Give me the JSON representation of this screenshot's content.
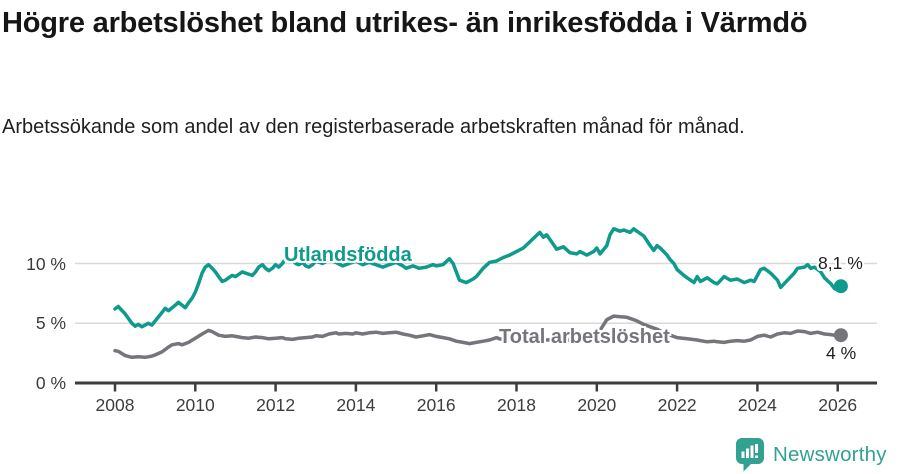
{
  "header": {
    "title": "Högre arbetslöshet bland utrikes- än inrikesfödda i Värmdö",
    "subtitle": "Arbetssökande som andel av den registerbaserade arbetskraften månad för månad."
  },
  "footer": {
    "brand": "Newsworthy"
  },
  "colors": {
    "foreign": "#0e9a8c",
    "total": "#75757c",
    "grid": "#d9d9d9",
    "axis": "#3d3d3d",
    "brand": "#33a191",
    "annotation_text": "#1f1f1f"
  },
  "chart_data": {
    "type": "line",
    "title": "Högre arbetslöshet bland utrikes- än inrikesfödda i Värmdö",
    "subtitle": "Arbetssökande som andel av den registerbaserade arbetskraften månad för månad.",
    "xlabel": "",
    "ylabel": "",
    "xlim": [
      2007.5,
      2026.6
    ],
    "ylim": [
      0,
      14
    ],
    "grid": "horizontal",
    "legend_position": "inline-labels",
    "x_ticks": [
      2008,
      2010,
      2012,
      2014,
      2016,
      2018,
      2020,
      2022,
      2024,
      2026
    ],
    "y_ticks": [
      {
        "value": 10,
        "label": "10 %"
      },
      {
        "value": 5,
        "label": "5 %"
      },
      {
        "value": 0,
        "label": "0 %"
      }
    ],
    "series": [
      {
        "id": "utlandsfodda",
        "name": "Utlandsfödda",
        "last_label": "8,1 %",
        "last_value": 8.1,
        "color": "#0e9a8c",
        "points": [
          [
            2008.0,
            6.2
          ],
          [
            2008.08,
            6.4
          ],
          [
            2008.25,
            5.8
          ],
          [
            2008.42,
            5.0
          ],
          [
            2008.5,
            4.75
          ],
          [
            2008.58,
            4.9
          ],
          [
            2008.67,
            4.7
          ],
          [
            2008.83,
            5.0
          ],
          [
            2008.92,
            4.85
          ],
          [
            2009.0,
            5.2
          ],
          [
            2009.17,
            5.9
          ],
          [
            2009.25,
            6.25
          ],
          [
            2009.33,
            6.05
          ],
          [
            2009.5,
            6.5
          ],
          [
            2009.58,
            6.75
          ],
          [
            2009.75,
            6.3
          ],
          [
            2009.83,
            6.7
          ],
          [
            2009.92,
            7.1
          ],
          [
            2010.0,
            7.6
          ],
          [
            2010.08,
            8.3
          ],
          [
            2010.17,
            9.2
          ],
          [
            2010.25,
            9.7
          ],
          [
            2010.33,
            9.9
          ],
          [
            2010.42,
            9.6
          ],
          [
            2010.5,
            9.3
          ],
          [
            2010.58,
            8.9
          ],
          [
            2010.67,
            8.5
          ],
          [
            2010.75,
            8.6
          ],
          [
            2010.83,
            8.8
          ],
          [
            2010.92,
            9.0
          ],
          [
            2011.0,
            8.9
          ],
          [
            2011.17,
            9.3
          ],
          [
            2011.25,
            9.2
          ],
          [
            2011.42,
            9.0
          ],
          [
            2011.5,
            9.3
          ],
          [
            2011.58,
            9.7
          ],
          [
            2011.67,
            9.9
          ],
          [
            2011.75,
            9.6
          ],
          [
            2011.83,
            9.4
          ],
          [
            2011.92,
            9.6
          ],
          [
            2012.0,
            9.9
          ],
          [
            2012.08,
            9.7
          ],
          [
            2012.17,
            10.0
          ],
          [
            2012.25,
            10.4
          ],
          [
            2012.33,
            10.6
          ],
          [
            2012.42,
            10.3
          ],
          [
            2012.5,
            10.0
          ],
          [
            2012.58,
            9.9
          ],
          [
            2012.67,
            10.1
          ],
          [
            2012.75,
            9.8
          ],
          [
            2012.83,
            9.7
          ],
          [
            2012.92,
            9.9
          ],
          [
            2013.0,
            10.2
          ],
          [
            2013.17,
            10.0
          ],
          [
            2013.33,
            10.3
          ],
          [
            2013.5,
            10.1
          ],
          [
            2013.67,
            9.8
          ],
          [
            2013.83,
            10.0
          ],
          [
            2014.0,
            10.2
          ],
          [
            2014.17,
            9.9
          ],
          [
            2014.33,
            10.1
          ],
          [
            2014.5,
            9.9
          ],
          [
            2014.67,
            9.7
          ],
          [
            2014.83,
            9.9
          ],
          [
            2015.0,
            10.1
          ],
          [
            2015.17,
            9.8
          ],
          [
            2015.25,
            9.6
          ],
          [
            2015.42,
            9.8
          ],
          [
            2015.58,
            9.6
          ],
          [
            2015.75,
            9.7
          ],
          [
            2015.92,
            9.9
          ],
          [
            2016.0,
            9.8
          ],
          [
            2016.17,
            9.9
          ],
          [
            2016.33,
            10.4
          ],
          [
            2016.42,
            10.0
          ],
          [
            2016.58,
            8.6
          ],
          [
            2016.75,
            8.4
          ],
          [
            2016.92,
            8.7
          ],
          [
            2017.0,
            8.9
          ],
          [
            2017.17,
            9.6
          ],
          [
            2017.33,
            10.1
          ],
          [
            2017.5,
            10.2
          ],
          [
            2017.67,
            10.5
          ],
          [
            2017.83,
            10.7
          ],
          [
            2018.0,
            11.0
          ],
          [
            2018.17,
            11.3
          ],
          [
            2018.33,
            11.8
          ],
          [
            2018.42,
            12.1
          ],
          [
            2018.58,
            12.6
          ],
          [
            2018.67,
            12.2
          ],
          [
            2018.75,
            12.4
          ],
          [
            2018.92,
            11.6
          ],
          [
            2019.0,
            11.2
          ],
          [
            2019.17,
            11.4
          ],
          [
            2019.33,
            10.9
          ],
          [
            2019.5,
            10.8
          ],
          [
            2019.58,
            11.0
          ],
          [
            2019.75,
            10.7
          ],
          [
            2019.92,
            11.0
          ],
          [
            2020.0,
            11.3
          ],
          [
            2020.08,
            10.8
          ],
          [
            2020.25,
            11.5
          ],
          [
            2020.33,
            12.4
          ],
          [
            2020.42,
            12.9
          ],
          [
            2020.58,
            12.7
          ],
          [
            2020.67,
            12.8
          ],
          [
            2020.83,
            12.6
          ],
          [
            2020.92,
            12.9
          ],
          [
            2021.0,
            12.7
          ],
          [
            2021.17,
            12.3
          ],
          [
            2021.33,
            11.5
          ],
          [
            2021.42,
            11.1
          ],
          [
            2021.5,
            11.5
          ],
          [
            2021.58,
            11.3
          ],
          [
            2021.75,
            10.7
          ],
          [
            2021.83,
            10.3
          ],
          [
            2021.92,
            10.0
          ],
          [
            2022.0,
            9.5
          ],
          [
            2022.17,
            9.0
          ],
          [
            2022.25,
            8.8
          ],
          [
            2022.42,
            8.4
          ],
          [
            2022.5,
            8.9
          ],
          [
            2022.58,
            8.5
          ],
          [
            2022.75,
            8.8
          ],
          [
            2022.92,
            8.4
          ],
          [
            2023.0,
            8.3
          ],
          [
            2023.17,
            8.9
          ],
          [
            2023.33,
            8.6
          ],
          [
            2023.5,
            8.7
          ],
          [
            2023.67,
            8.4
          ],
          [
            2023.83,
            8.6
          ],
          [
            2023.92,
            8.5
          ],
          [
            2024.0,
            9.0
          ],
          [
            2024.08,
            9.5
          ],
          [
            2024.17,
            9.6
          ],
          [
            2024.33,
            9.2
          ],
          [
            2024.5,
            8.6
          ],
          [
            2024.58,
            8.0
          ],
          [
            2024.75,
            8.6
          ],
          [
            2024.92,
            9.2
          ],
          [
            2025.0,
            9.6
          ],
          [
            2025.17,
            9.7
          ],
          [
            2025.25,
            9.9
          ],
          [
            2025.33,
            9.6
          ],
          [
            2025.42,
            9.7
          ],
          [
            2025.58,
            9.3
          ],
          [
            2025.67,
            8.8
          ],
          [
            2025.83,
            8.3
          ],
          [
            2025.92,
            7.9
          ],
          [
            2026.0,
            7.8
          ],
          [
            2026.08,
            8.1
          ]
        ]
      },
      {
        "id": "total",
        "name": "Total arbetslöshet",
        "last_label": "4 %",
        "last_value": 4.0,
        "color": "#75757c",
        "points": [
          [
            2008.0,
            2.7
          ],
          [
            2008.08,
            2.65
          ],
          [
            2008.25,
            2.3
          ],
          [
            2008.42,
            2.15
          ],
          [
            2008.58,
            2.2
          ],
          [
            2008.75,
            2.15
          ],
          [
            2008.92,
            2.25
          ],
          [
            2009.0,
            2.35
          ],
          [
            2009.17,
            2.6
          ],
          [
            2009.33,
            3.0
          ],
          [
            2009.42,
            3.2
          ],
          [
            2009.58,
            3.3
          ],
          [
            2009.67,
            3.2
          ],
          [
            2009.83,
            3.4
          ],
          [
            2010.0,
            3.75
          ],
          [
            2010.17,
            4.1
          ],
          [
            2010.33,
            4.4
          ],
          [
            2010.42,
            4.3
          ],
          [
            2010.58,
            4.0
          ],
          [
            2010.75,
            3.9
          ],
          [
            2010.92,
            3.95
          ],
          [
            2011.0,
            3.9
          ],
          [
            2011.17,
            3.8
          ],
          [
            2011.33,
            3.75
          ],
          [
            2011.5,
            3.85
          ],
          [
            2011.67,
            3.8
          ],
          [
            2011.83,
            3.7
          ],
          [
            2012.0,
            3.75
          ],
          [
            2012.17,
            3.8
          ],
          [
            2012.25,
            3.7
          ],
          [
            2012.42,
            3.65
          ],
          [
            2012.58,
            3.75
          ],
          [
            2012.75,
            3.8
          ],
          [
            2012.92,
            3.85
          ],
          [
            2013.0,
            3.95
          ],
          [
            2013.17,
            3.9
          ],
          [
            2013.33,
            4.1
          ],
          [
            2013.5,
            4.2
          ],
          [
            2013.58,
            4.1
          ],
          [
            2013.75,
            4.15
          ],
          [
            2013.92,
            4.1
          ],
          [
            2014.0,
            4.2
          ],
          [
            2014.17,
            4.1
          ],
          [
            2014.33,
            4.2
          ],
          [
            2014.5,
            4.25
          ],
          [
            2014.67,
            4.15
          ],
          [
            2014.83,
            4.2
          ],
          [
            2015.0,
            4.25
          ],
          [
            2015.17,
            4.1
          ],
          [
            2015.33,
            4.0
          ],
          [
            2015.5,
            3.85
          ],
          [
            2015.67,
            3.95
          ],
          [
            2015.83,
            4.05
          ],
          [
            2016.0,
            3.9
          ],
          [
            2016.17,
            3.8
          ],
          [
            2016.33,
            3.7
          ],
          [
            2016.5,
            3.5
          ],
          [
            2016.67,
            3.4
          ],
          [
            2016.83,
            3.3
          ],
          [
            2017.0,
            3.4
          ],
          [
            2017.17,
            3.5
          ],
          [
            2017.33,
            3.6
          ],
          [
            2017.5,
            3.8
          ],
          [
            2017.58,
            3.7
          ],
          [
            2017.75,
            3.6
          ],
          [
            2017.92,
            3.65
          ],
          [
            2018.0,
            3.7
          ],
          [
            2018.25,
            3.6
          ],
          [
            2018.5,
            3.65
          ],
          [
            2018.75,
            3.6
          ],
          [
            2019.0,
            3.65
          ],
          [
            2019.25,
            3.6
          ],
          [
            2019.5,
            3.65
          ],
          [
            2019.75,
            3.7
          ],
          [
            2020.0,
            3.8
          ],
          [
            2020.08,
            4.4
          ],
          [
            2020.25,
            5.3
          ],
          [
            2020.42,
            5.6
          ],
          [
            2020.58,
            5.55
          ],
          [
            2020.75,
            5.5
          ],
          [
            2020.92,
            5.3
          ],
          [
            2021.0,
            5.2
          ],
          [
            2021.17,
            4.9
          ],
          [
            2021.33,
            4.7
          ],
          [
            2021.5,
            4.5
          ],
          [
            2021.67,
            4.2
          ],
          [
            2021.83,
            4.0
          ],
          [
            2022.0,
            3.8
          ],
          [
            2022.25,
            3.7
          ],
          [
            2022.5,
            3.6
          ],
          [
            2022.58,
            3.55
          ],
          [
            2022.75,
            3.45
          ],
          [
            2022.92,
            3.5
          ],
          [
            2023.0,
            3.45
          ],
          [
            2023.17,
            3.4
          ],
          [
            2023.33,
            3.5
          ],
          [
            2023.5,
            3.55
          ],
          [
            2023.67,
            3.5
          ],
          [
            2023.83,
            3.6
          ],
          [
            2024.0,
            3.9
          ],
          [
            2024.17,
            4.0
          ],
          [
            2024.33,
            3.85
          ],
          [
            2024.5,
            4.1
          ],
          [
            2024.67,
            4.2
          ],
          [
            2024.83,
            4.15
          ],
          [
            2025.0,
            4.35
          ],
          [
            2025.17,
            4.3
          ],
          [
            2025.33,
            4.15
          ],
          [
            2025.5,
            4.25
          ],
          [
            2025.67,
            4.1
          ],
          [
            2025.83,
            4.05
          ],
          [
            2026.0,
            3.95
          ],
          [
            2026.08,
            4.0
          ]
        ]
      }
    ]
  }
}
